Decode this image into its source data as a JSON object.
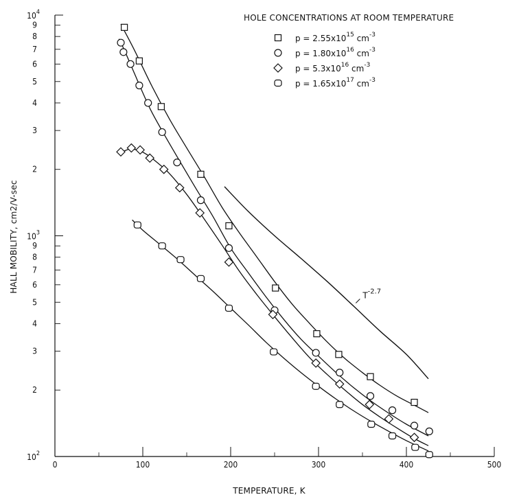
{
  "chart_data": {
    "type": "scatter",
    "title": "",
    "xlabel": "TEMPERATURE, K",
    "ylabel": "HALL MOBILITY, cm2/V-sec",
    "xlim": [
      0,
      500
    ],
    "ylim": [
      100,
      10000
    ],
    "yscale": "log",
    "grid": false,
    "legend_title": "HOLE CONCENTRATIONS AT ROOM TEMPERATURE",
    "legend_position": "top-right",
    "x_ticks": [
      "0",
      "100",
      "200",
      "300",
      "400",
      "500"
    ],
    "y_decade_labels": [
      {
        "value": 100,
        "base": "10",
        "exp": "2"
      },
      {
        "value": 1000,
        "base": "10",
        "exp": "3"
      },
      {
        "value": 10000,
        "base": "10",
        "exp": "4"
      }
    ],
    "y_minor_labels": [
      {
        "value": 200,
        "label": "2"
      },
      {
        "value": 300,
        "label": "3"
      },
      {
        "value": 400,
        "label": "4"
      },
      {
        "value": 500,
        "label": "5"
      },
      {
        "value": 600,
        "label": "6"
      },
      {
        "value": 700,
        "label": "7"
      },
      {
        "value": 800,
        "label": "8"
      },
      {
        "value": 900,
        "label": "9"
      },
      {
        "value": 2000,
        "label": "2"
      },
      {
        "value": 3000,
        "label": "3"
      },
      {
        "value": 4000,
        "label": "4"
      },
      {
        "value": 5000,
        "label": "5"
      },
      {
        "value": 6000,
        "label": "6"
      },
      {
        "value": 7000,
        "label": "7"
      },
      {
        "value": 8000,
        "label": "8"
      },
      {
        "value": 9000,
        "label": "9"
      }
    ],
    "series": [
      {
        "name": "p = 2.55x10^15 cm^-3",
        "legend": {
          "prefix": "p = 2.55x10",
          "exp": "15",
          "unit": " cm",
          "unit_exp": "-3"
        },
        "marker": "square",
        "points": [
          [
            79,
            8800
          ],
          [
            96,
            6200
          ],
          [
            121,
            3850
          ],
          [
            166,
            1900
          ],
          [
            198,
            1110
          ],
          [
            251,
            580
          ],
          [
            298,
            360
          ],
          [
            323,
            290
          ],
          [
            359,
            230
          ],
          [
            409,
            176
          ]
        ],
        "fit": [
          [
            75,
            9100
          ],
          [
            90,
            7000
          ],
          [
            110,
            4800
          ],
          [
            130,
            3400
          ],
          [
            150,
            2500
          ],
          [
            170,
            1850
          ],
          [
            190,
            1350
          ],
          [
            210,
            1030
          ],
          [
            230,
            800
          ],
          [
            250,
            620
          ],
          [
            270,
            490
          ],
          [
            290,
            400
          ],
          [
            310,
            330
          ],
          [
            330,
            278
          ],
          [
            350,
            240
          ],
          [
            370,
            210
          ],
          [
            390,
            187
          ],
          [
            410,
            170
          ],
          [
            425,
            158
          ]
        ]
      },
      {
        "name": "p = 1.80x10^16 cm^-3",
        "legend": {
          "prefix": "p = 1.80x10",
          "exp": "16",
          "unit": " cm",
          "unit_exp": "-3"
        },
        "marker": "circle",
        "points": [
          [
            75,
            7500
          ],
          [
            78,
            6800
          ],
          [
            86,
            6000
          ],
          [
            96,
            4800
          ],
          [
            106,
            4000
          ],
          [
            122,
            2950
          ],
          [
            139,
            2150
          ],
          [
            166,
            1450
          ],
          [
            198,
            880
          ],
          [
            250,
            460
          ],
          [
            297,
            295
          ],
          [
            324,
            240
          ],
          [
            359,
            188
          ],
          [
            384,
            162
          ],
          [
            409,
            138
          ],
          [
            426,
            130
          ]
        ],
        "fit": [
          [
            73,
            7800
          ],
          [
            80,
            6800
          ],
          [
            90,
            5500
          ],
          [
            100,
            4450
          ],
          [
            110,
            3650
          ],
          [
            125,
            2850
          ],
          [
            140,
            2250
          ],
          [
            160,
            1650
          ],
          [
            180,
            1220
          ],
          [
            200,
            880
          ],
          [
            220,
            680
          ],
          [
            240,
            530
          ],
          [
            260,
            420
          ],
          [
            280,
            340
          ],
          [
            300,
            285
          ],
          [
            320,
            240
          ],
          [
            340,
            205
          ],
          [
            360,
            178
          ],
          [
            380,
            157
          ],
          [
            400,
            140
          ],
          [
            425,
            124
          ]
        ]
      },
      {
        "name": "p = 5.3x10^16 cm^-3",
        "legend": {
          "prefix": "p = 5.3x10",
          "exp": "16",
          "unit": " cm",
          "unit_exp": "-3"
        },
        "marker": "diamond",
        "points": [
          [
            75,
            2400
          ],
          [
            87,
            2500
          ],
          [
            97,
            2450
          ],
          [
            108,
            2250
          ],
          [
            124,
            2000
          ],
          [
            142,
            1650
          ],
          [
            165,
            1270
          ],
          [
            198,
            760
          ],
          [
            248,
            440
          ],
          [
            297,
            265
          ],
          [
            324,
            213
          ],
          [
            358,
            172
          ],
          [
            380,
            148
          ],
          [
            409,
            122
          ]
        ],
        "fit": [
          [
            75,
            2380
          ],
          [
            85,
            2470
          ],
          [
            95,
            2440
          ],
          [
            105,
            2330
          ],
          [
            115,
            2170
          ],
          [
            130,
            1920
          ],
          [
            150,
            1540
          ],
          [
            170,
            1190
          ],
          [
            190,
            910
          ],
          [
            210,
            690
          ],
          [
            230,
            540
          ],
          [
            250,
            430
          ],
          [
            270,
            345
          ],
          [
            290,
            280
          ],
          [
            310,
            235
          ],
          [
            330,
            200
          ],
          [
            350,
            172
          ],
          [
            370,
            151
          ],
          [
            390,
            134
          ],
          [
            410,
            120
          ],
          [
            425,
            112
          ]
        ]
      },
      {
        "name": "p = 1.65x10^17 cm^-3",
        "legend": {
          "prefix": "p = 1.65x10",
          "exp": "17",
          "unit": " cm",
          "unit_exp": "-3"
        },
        "marker": "rounded-square",
        "points": [
          [
            94,
            1120
          ],
          [
            122,
            900
          ],
          [
            143,
            780
          ],
          [
            166,
            640
          ],
          [
            198,
            470
          ],
          [
            249,
            298
          ],
          [
            297,
            208
          ],
          [
            324,
            172
          ],
          [
            360,
            140
          ],
          [
            384,
            124
          ],
          [
            410,
            110
          ],
          [
            426,
            102
          ]
        ],
        "fit": [
          [
            88,
            1180
          ],
          [
            100,
            1060
          ],
          [
            120,
            910
          ],
          [
            140,
            780
          ],
          [
            160,
            660
          ],
          [
            180,
            560
          ],
          [
            200,
            470
          ],
          [
            220,
            395
          ],
          [
            240,
            330
          ],
          [
            260,
            280
          ],
          [
            280,
            240
          ],
          [
            300,
            208
          ],
          [
            320,
            182
          ],
          [
            340,
            161
          ],
          [
            360,
            144
          ],
          [
            380,
            130
          ],
          [
            400,
            118
          ],
          [
            425,
            106
          ]
        ]
      }
    ],
    "annotation": {
      "label": "T",
      "exp": "-2.7",
      "curve": [
        [
          193,
          1670
        ],
        [
          220,
          1290
        ],
        [
          250,
          1000
        ],
        [
          280,
          790
        ],
        [
          310,
          620
        ],
        [
          340,
          480
        ],
        [
          370,
          370
        ],
        [
          400,
          290
        ],
        [
          425,
          225
        ]
      ],
      "label_at": [
        344,
        540
      ]
    }
  }
}
